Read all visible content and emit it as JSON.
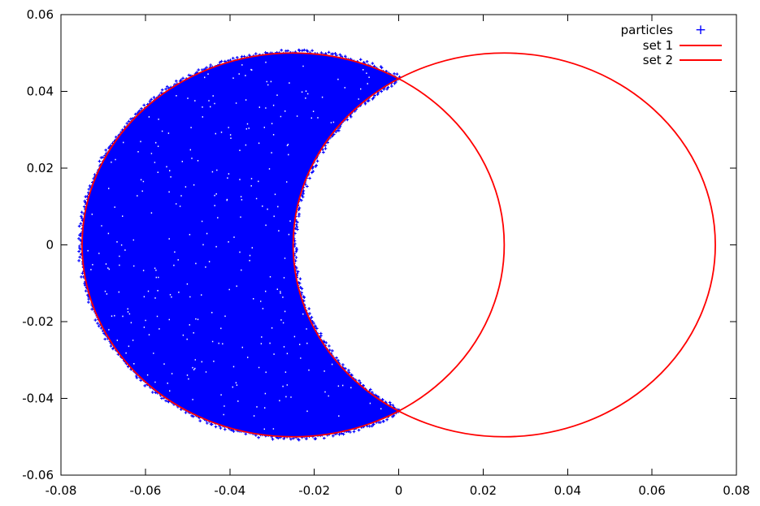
{
  "figure": {
    "background": "#ffffff",
    "axis_color": "#000000",
    "text_color": "#000000"
  },
  "chart_data": {
    "type": "scatter",
    "title": "",
    "xlabel": "",
    "ylabel": "",
    "xlim": [
      -0.08,
      0.08
    ],
    "ylim": [
      -0.06,
      0.06
    ],
    "grid": false,
    "tick_style": "inward-mirrored-on-all-borders",
    "x_tick_values": [
      -0.08,
      -0.06,
      -0.04,
      -0.02,
      0,
      0.02,
      0.04,
      0.06,
      0.08
    ],
    "x_tick_labels": [
      "-0.08",
      "-0.06",
      "-0.04",
      "-0.02",
      "0",
      "0.02",
      "0.04",
      "0.06",
      "0.08"
    ],
    "y_tick_values": [
      -0.06,
      -0.04,
      -0.02,
      0,
      0.02,
      0.04,
      0.06
    ],
    "y_tick_labels": [
      "-0.06",
      "-0.04",
      "-0.02",
      "0",
      "0.02",
      "0.04",
      "0.06"
    ],
    "legend_position": "top-right-inside",
    "legend": [
      {
        "label": "particles",
        "sample": "point",
        "marker": "+",
        "color": "#0000ff"
      },
      {
        "label": "set 1",
        "sample": "line",
        "color": "#ff0000"
      },
      {
        "label": "set 2",
        "sample": "line",
        "color": "#ff0000"
      }
    ],
    "series": [
      {
        "name": "particles",
        "type": "scatter",
        "marker": "+",
        "color": "#0000ff",
        "description": "Dense Monte-Carlo particle cloud appearing as a solid blue crescent: points lie inside circle 'set 1' and outside circle 'set 2', with ragged +-marker fringe on both arcs and sparse unfilled white pixels inside",
        "region": {
          "inside_circle": {
            "center": [
              -0.025,
              0
            ],
            "radius": 0.05
          },
          "outside_circle": {
            "center": [
              0.025,
              0
            ],
            "radius": 0.05
          }
        }
      },
      {
        "name": "set 1",
        "type": "circle-outline",
        "center": [
          -0.025,
          0
        ],
        "radius": 0.05,
        "color": "#ff0000"
      },
      {
        "name": "set 2",
        "type": "circle-outline",
        "center": [
          0.025,
          0
        ],
        "radius": 0.05,
        "color": "#ff0000"
      }
    ],
    "render": {
      "seed": 1234,
      "edge_markers_outer_arc": 430,
      "edge_markers_inner_arc": 215,
      "white_speckles": 300
    },
    "colors": {
      "particles": "#0000ff",
      "set_circles": "#ff0000",
      "axis": "#000000",
      "background": "#ffffff"
    }
  }
}
